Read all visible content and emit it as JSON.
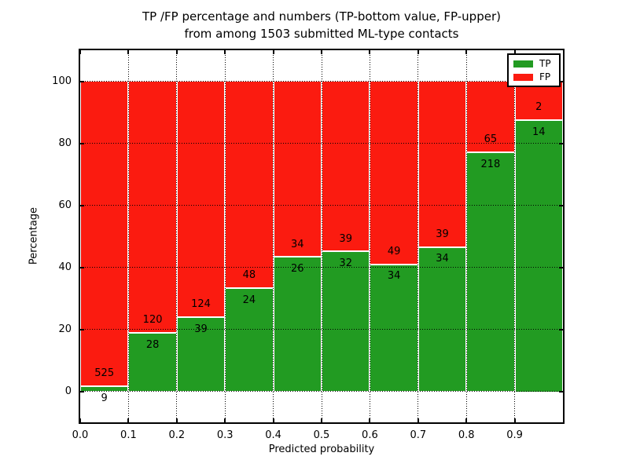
{
  "figure": {
    "title_line1": "TP /FP percentage and numbers (TP-bottom value, FP-upper)",
    "title_line2": "from among 1503 submitted ML-type contacts",
    "xlabel": "Predicted probability",
    "ylabel": "Percentage"
  },
  "legend": {
    "items": [
      {
        "label": "TP",
        "color": "#229b22"
      },
      {
        "label": "FP",
        "color": "#fb1b10"
      }
    ]
  },
  "axes": {
    "xtick_labels": [
      "0.0",
      "0.1",
      "0.2",
      "0.3",
      "0.4",
      "0.5",
      "0.6",
      "0.7",
      "0.8",
      "0.9"
    ],
    "ytick_labels": [
      "0",
      "20",
      "40",
      "60",
      "80",
      "100"
    ],
    "ytick_values": [
      0,
      20,
      40,
      60,
      80,
      100
    ],
    "ylim": [
      -10,
      110
    ],
    "grid": "dotted black, x and y"
  },
  "chart_data": {
    "type": "bar",
    "stacked": true,
    "normalized": "each bar scaled to 100%, counts shown as labels",
    "title": "TP /FP percentage and numbers (TP-bottom value, FP-upper) from among 1503 submitted ML-type contacts",
    "xlabel": "Predicted probability",
    "ylabel": "Percentage",
    "ylim": [
      -10,
      110
    ],
    "legend_position": "upper right",
    "total_contacts": 1503,
    "bins": [
      "0.0-0.1",
      "0.1-0.2",
      "0.2-0.3",
      "0.3-0.4",
      "0.4-0.5",
      "0.5-0.6",
      "0.6-0.7",
      "0.7-0.8",
      "0.8-0.9",
      "0.9-1.0"
    ],
    "series": [
      {
        "name": "TP",
        "color": "#229b22",
        "counts": [
          9,
          28,
          39,
          24,
          26,
          32,
          34,
          34,
          218,
          14
        ]
      },
      {
        "name": "FP",
        "color": "#fb1b10",
        "counts": [
          525,
          120,
          124,
          48,
          34,
          39,
          49,
          39,
          65,
          2
        ]
      }
    ],
    "tp_percent": [
      1.7,
      18.9,
      23.9,
      33.3,
      43.3,
      45.1,
      41.0,
      46.6,
      77.0,
      87.5
    ]
  }
}
